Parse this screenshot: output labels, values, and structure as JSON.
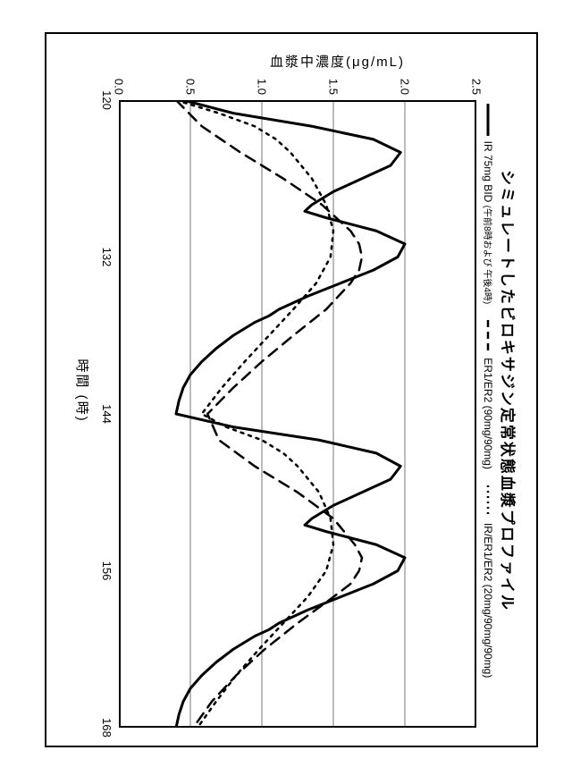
{
  "chart": {
    "type": "line",
    "title": "シミュレートしたビロキサジン定常状態血漿プロファイル",
    "xlabel": "時間 (時)",
    "ylabel": "血漿中濃度(μg/mL)",
    "xlim": [
      120,
      168
    ],
    "ylim": [
      0.0,
      2.5
    ],
    "xticks": [
      120,
      132,
      144,
      156,
      168
    ],
    "yticks": [
      0.0,
      0.5,
      1.0,
      1.5,
      2.0,
      2.5
    ],
    "grid_color": "#777777",
    "border_color": "#000000",
    "background_color": "#ffffff",
    "line_width_solid": 3,
    "line_width_dash": 2.5,
    "line_width_dot": 2.5,
    "legend": [
      {
        "key": "ir",
        "label": "IR 75mg BID",
        "sublabel": "(午前8時および\n午後4時)",
        "style": "solid",
        "color": "#000000"
      },
      {
        "key": "er",
        "label": "ER1/ER2 (90mg/90mg)",
        "style": "dash",
        "color": "#000000"
      },
      {
        "key": "mix",
        "label": "IR/ER1/ER2 (20mg/90mg/90mg)",
        "style": "dot",
        "color": "#000000"
      }
    ],
    "series": {
      "ir": {
        "x": [
          120,
          121,
          122,
          123,
          124,
          125,
          126,
          127,
          128,
          128.5,
          129,
          130,
          131,
          132,
          133,
          134,
          135,
          136,
          136.5,
          137,
          138,
          139,
          140,
          141,
          142,
          143,
          144,
          145,
          146,
          147,
          148,
          149,
          150,
          151,
          152,
          152.5,
          153,
          154,
          155,
          156,
          157,
          158,
          159,
          160,
          160.5,
          161,
          162,
          163,
          164,
          165,
          166,
          167,
          168
        ],
        "y": [
          0.45,
          0.8,
          1.35,
          1.78,
          1.97,
          1.9,
          1.7,
          1.5,
          1.35,
          1.3,
          1.45,
          1.8,
          2.0,
          1.95,
          1.78,
          1.55,
          1.32,
          1.12,
          1.05,
          0.95,
          0.8,
          0.68,
          0.58,
          0.5,
          0.45,
          0.42,
          0.4,
          0.8,
          1.4,
          1.8,
          1.97,
          1.9,
          1.7,
          1.5,
          1.35,
          1.3,
          1.45,
          1.8,
          2.0,
          1.95,
          1.78,
          1.55,
          1.32,
          1.12,
          1.05,
          0.95,
          0.8,
          0.68,
          0.58,
          0.5,
          0.45,
          0.42,
          0.4
        ]
      },
      "er": {
        "x": [
          120,
          122,
          124,
          126,
          128,
          130,
          131,
          132,
          133,
          134,
          136,
          138,
          140,
          142,
          144,
          146,
          148,
          150,
          152,
          154,
          155,
          156,
          157,
          158,
          160,
          162,
          164,
          166,
          168
        ],
        "y": [
          0.4,
          0.58,
          0.85,
          1.15,
          1.42,
          1.62,
          1.68,
          1.7,
          1.68,
          1.62,
          1.45,
          1.22,
          1.0,
          0.8,
          0.62,
          0.7,
          0.95,
          1.25,
          1.5,
          1.65,
          1.7,
          1.68,
          1.62,
          1.5,
          1.25,
          1.02,
          0.82,
          0.65,
          0.52
        ]
      },
      "mix": {
        "x": [
          120,
          121,
          122,
          123,
          124,
          126,
          128,
          130,
          132,
          134,
          136,
          138,
          140,
          142,
          144,
          145,
          146,
          147,
          148,
          150,
          152,
          154,
          156,
          158,
          160,
          162,
          164,
          166,
          168
        ],
        "y": [
          0.4,
          0.7,
          0.95,
          1.1,
          1.2,
          1.35,
          1.45,
          1.5,
          1.48,
          1.38,
          1.22,
          1.05,
          0.88,
          0.72,
          0.58,
          0.75,
          1.0,
          1.15,
          1.25,
          1.4,
          1.48,
          1.5,
          1.45,
          1.32,
          1.15,
          0.98,
          0.82,
          0.68,
          0.55
        ]
      }
    }
  }
}
